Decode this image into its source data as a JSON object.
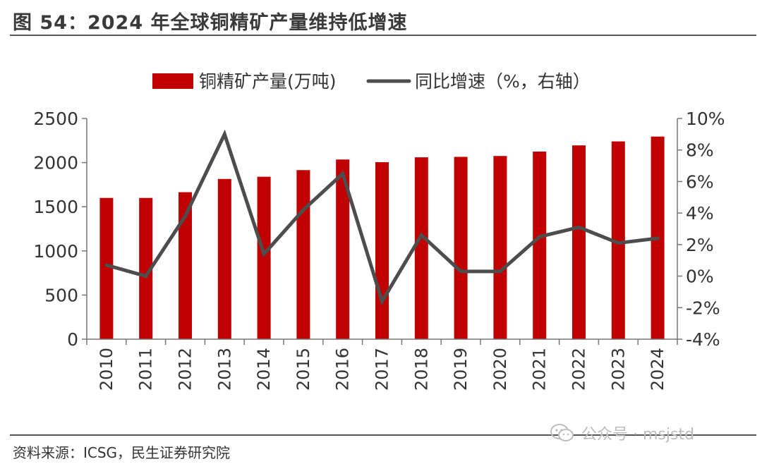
{
  "figure": {
    "title": "图 54：2024 年全球铜精矿产量维持低增速",
    "source": "资料来源：ICSG，民生证券研究院",
    "watermark": "公众号 · msjstd",
    "watermark_icon": "wechat-icon"
  },
  "chart_data": {
    "type": "bar",
    "categories": [
      "2010",
      "2011",
      "2012",
      "2013",
      "2014",
      "2015",
      "2016",
      "2017",
      "2018",
      "2019",
      "2020",
      "2021",
      "2022",
      "2023",
      "2024"
    ],
    "series": [
      {
        "name": "铜精矿产量(万吨)",
        "type": "bar",
        "axis": "left",
        "color": "#C00000",
        "values": [
          1600,
          1600,
          1665,
          1815,
          1840,
          1915,
          2035,
          2005,
          2060,
          2065,
          2075,
          2125,
          2195,
          2240,
          2295
        ]
      },
      {
        "name": "同比增速（%，右轴）",
        "type": "line",
        "axis": "right",
        "color": "#4d4d4d",
        "values": [
          0.7,
          0.0,
          3.8,
          9.0,
          1.4,
          4.2,
          6.5,
          -1.6,
          2.6,
          0.3,
          0.3,
          2.5,
          3.1,
          2.1,
          2.4
        ]
      }
    ],
    "left_axis": {
      "min": 0,
      "max": 2500,
      "ticks": [
        0,
        500,
        1000,
        1500,
        2000,
        2500
      ],
      "tick_labels": [
        "0",
        "500",
        "1000",
        "1500",
        "2000",
        "2500"
      ]
    },
    "right_axis": {
      "min": -4,
      "max": 10,
      "ticks": [
        -4,
        -2,
        0,
        2,
        4,
        6,
        8,
        10
      ],
      "tick_labels": [
        "-4%",
        "-2%",
        "0%",
        "2%",
        "4%",
        "6%",
        "8%",
        "10%"
      ]
    },
    "grid": false,
    "legend_position": "top-center"
  }
}
